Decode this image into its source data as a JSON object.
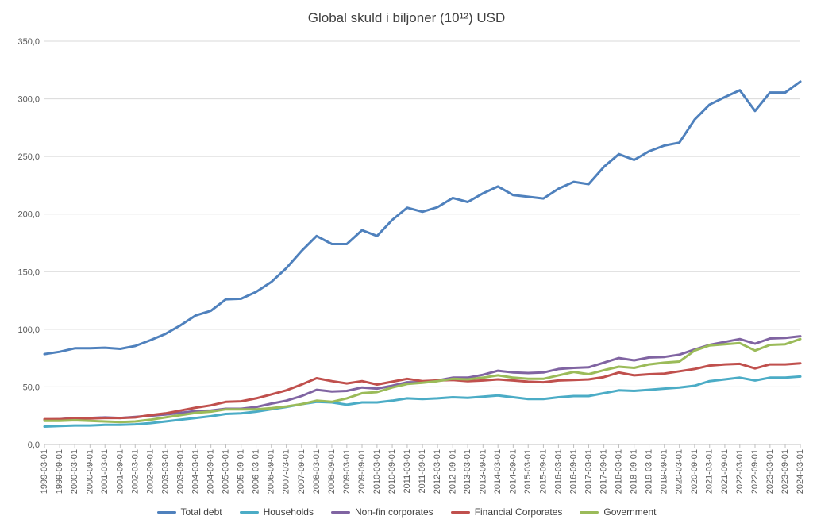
{
  "chart_data": {
    "type": "line",
    "title": "Global skuld i biljoner (10¹²) USD",
    "xlabel": "",
    "ylabel": "",
    "ylim": [
      0,
      350
    ],
    "yticks": [
      "0,0",
      "50,0",
      "100,0",
      "150,0",
      "200,0",
      "250,0",
      "300,0",
      "350,0"
    ],
    "grid": "horizontal",
    "legend_position": "bottom",
    "x_tick_labels": [
      "1999-03-01",
      "1999-09-01",
      "2000-03-01",
      "2000-09-01",
      "2001-03-01",
      "2001-09-01",
      "2002-03-01",
      "2002-09-01",
      "2003-03-01",
      "2003-09-01",
      "2004-03-01",
      "2004-09-01",
      "2005-03-01",
      "2005-09-01",
      "2006-03-01",
      "2006-09-01",
      "2007-03-01",
      "2007-09-01",
      "2008-03-01",
      "2008-09-01",
      "2009-03-01",
      "2009-09-01",
      "2010-03-01",
      "2010-09-01",
      "2011-03-01",
      "2011-09-01",
      "2012-03-01",
      "2012-09-01",
      "2013-03-01",
      "2013-09-01",
      "2014-03-01",
      "2014-09-01",
      "2015-03-01",
      "2015-09-01",
      "2016-03-01",
      "2016-09-01",
      "2017-03-01",
      "2017-09-01",
      "2018-03-01",
      "2018-09-01",
      "2019-03-01",
      "2019-09-01",
      "2020-03-01",
      "2020-09-01",
      "2021-03-01",
      "2021-09-01",
      "2022-03-01",
      "2022-09-01",
      "2023-03-01",
      "2023-09-01",
      "2024-03-01"
    ],
    "x_start": "1999-03-01",
    "x_end": "2024-03-01",
    "series": [
      {
        "name": "Total debt",
        "color": "#4f81bd",
        "values": [
          [
            "1999-03-01",
            78.5
          ],
          [
            "1999-09-01",
            80.5
          ],
          [
            "2000-03-01",
            83.5
          ],
          [
            "2000-09-01",
            83.5
          ],
          [
            "2001-03-01",
            84.0
          ],
          [
            "2001-09-01",
            83.0
          ],
          [
            "2002-03-01",
            85.5
          ],
          [
            "2002-09-01",
            90.5
          ],
          [
            "2003-03-01",
            96.0
          ],
          [
            "2003-09-01",
            103.5
          ],
          [
            "2004-03-01",
            112.0
          ],
          [
            "2004-09-01",
            116.0
          ],
          [
            "2005-03-01",
            126.0
          ],
          [
            "2005-09-01",
            126.5
          ],
          [
            "2006-03-01",
            132.5
          ],
          [
            "2006-09-01",
            141.0
          ],
          [
            "2007-03-01",
            153.0
          ],
          [
            "2007-09-01",
            168.0
          ],
          [
            "2008-03-01",
            181.0
          ],
          [
            "2008-09-01",
            174.0
          ],
          [
            "2009-03-01",
            174.0
          ],
          [
            "2009-09-01",
            186.0
          ],
          [
            "2010-03-01",
            181.0
          ],
          [
            "2010-09-01",
            195.0
          ],
          [
            "2011-03-01",
            205.5
          ],
          [
            "2011-09-01",
            202.0
          ],
          [
            "2012-03-01",
            206.0
          ],
          [
            "2012-09-01",
            214.0
          ],
          [
            "2013-03-01",
            210.5
          ],
          [
            "2013-09-01",
            218.0
          ],
          [
            "2014-03-01",
            224.0
          ],
          [
            "2014-09-01",
            216.5
          ],
          [
            "2015-03-01",
            215.0
          ],
          [
            "2015-09-01",
            213.5
          ],
          [
            "2016-03-01",
            222.0
          ],
          [
            "2016-09-01",
            228.0
          ],
          [
            "2017-03-01",
            226.0
          ],
          [
            "2017-09-01",
            241.0
          ],
          [
            "2018-03-01",
            252.0
          ],
          [
            "2018-09-01",
            247.0
          ],
          [
            "2019-03-01",
            254.5
          ],
          [
            "2019-09-01",
            259.5
          ],
          [
            "2020-03-01",
            262.0
          ],
          [
            "2020-09-01",
            282.0
          ],
          [
            "2021-03-01",
            295.0
          ],
          [
            "2021-09-01",
            301.5
          ],
          [
            "2022-03-01",
            307.5
          ],
          [
            "2022-09-01",
            289.5
          ],
          [
            "2023-03-01",
            305.5
          ],
          [
            "2023-09-01",
            305.5
          ],
          [
            "2024-03-01",
            315.0
          ]
        ]
      },
      {
        "name": "Households",
        "color": "#4bacc6",
        "values": [
          [
            "1999-03-01",
            15.5
          ],
          [
            "1999-09-01",
            16.0
          ],
          [
            "2000-03-01",
            16.5
          ],
          [
            "2000-09-01",
            16.5
          ],
          [
            "2001-03-01",
            17.0
          ],
          [
            "2001-09-01",
            17.0
          ],
          [
            "2002-03-01",
            17.5
          ],
          [
            "2002-09-01",
            18.5
          ],
          [
            "2003-03-01",
            20.0
          ],
          [
            "2003-09-01",
            21.5
          ],
          [
            "2004-03-01",
            23.0
          ],
          [
            "2004-09-01",
            24.5
          ],
          [
            "2005-03-01",
            26.5
          ],
          [
            "2005-09-01",
            27.0
          ],
          [
            "2006-03-01",
            28.5
          ],
          [
            "2006-09-01",
            30.5
          ],
          [
            "2007-03-01",
            32.5
          ],
          [
            "2007-09-01",
            35.0
          ],
          [
            "2008-03-01",
            37.0
          ],
          [
            "2008-09-01",
            36.5
          ],
          [
            "2009-03-01",
            34.5
          ],
          [
            "2009-09-01",
            36.5
          ],
          [
            "2010-03-01",
            36.5
          ],
          [
            "2010-09-01",
            38.0
          ],
          [
            "2011-03-01",
            40.0
          ],
          [
            "2011-09-01",
            39.5
          ],
          [
            "2012-03-01",
            40.0
          ],
          [
            "2012-09-01",
            41.0
          ],
          [
            "2013-03-01",
            40.5
          ],
          [
            "2013-09-01",
            41.5
          ],
          [
            "2014-03-01",
            42.5
          ],
          [
            "2014-09-01",
            41.0
          ],
          [
            "2015-03-01",
            39.5
          ],
          [
            "2015-09-01",
            39.5
          ],
          [
            "2016-03-01",
            41.0
          ],
          [
            "2016-09-01",
            42.0
          ],
          [
            "2017-03-01",
            42.0
          ],
          [
            "2017-09-01",
            44.5
          ],
          [
            "2018-03-01",
            47.0
          ],
          [
            "2018-09-01",
            46.5
          ],
          [
            "2019-03-01",
            47.5
          ],
          [
            "2019-09-01",
            48.5
          ],
          [
            "2020-03-01",
            49.5
          ],
          [
            "2020-09-01",
            51.0
          ],
          [
            "2021-03-01",
            55.0
          ],
          [
            "2021-09-01",
            56.5
          ],
          [
            "2022-03-01",
            58.0
          ],
          [
            "2022-09-01",
            55.5
          ],
          [
            "2023-03-01",
            58.0
          ],
          [
            "2023-09-01",
            58.0
          ],
          [
            "2024-03-01",
            59.0
          ]
        ]
      },
      {
        "name": "Non-fin corporates",
        "color": "#8064a2",
        "values": [
          [
            "1999-03-01",
            21.5
          ],
          [
            "1999-09-01",
            22.0
          ],
          [
            "2000-03-01",
            23.0
          ],
          [
            "2000-09-01",
            23.0
          ],
          [
            "2001-03-01",
            23.5
          ],
          [
            "2001-09-01",
            23.0
          ],
          [
            "2002-03-01",
            24.0
          ],
          [
            "2002-09-01",
            25.0
          ],
          [
            "2003-03-01",
            26.0
          ],
          [
            "2003-09-01",
            27.5
          ],
          [
            "2004-03-01",
            29.0
          ],
          [
            "2004-09-01",
            29.5
          ],
          [
            "2005-03-01",
            31.0
          ],
          [
            "2005-09-01",
            31.0
          ],
          [
            "2006-03-01",
            32.5
          ],
          [
            "2006-09-01",
            35.5
          ],
          [
            "2007-03-01",
            38.0
          ],
          [
            "2007-09-01",
            42.0
          ],
          [
            "2008-03-01",
            47.5
          ],
          [
            "2008-09-01",
            46.0
          ],
          [
            "2009-03-01",
            46.5
          ],
          [
            "2009-09-01",
            49.5
          ],
          [
            "2010-03-01",
            48.5
          ],
          [
            "2010-09-01",
            51.0
          ],
          [
            "2011-03-01",
            54.0
          ],
          [
            "2011-09-01",
            54.0
          ],
          [
            "2012-03-01",
            55.5
          ],
          [
            "2012-09-01",
            58.0
          ],
          [
            "2013-03-01",
            58.0
          ],
          [
            "2013-09-01",
            60.5
          ],
          [
            "2014-03-01",
            64.0
          ],
          [
            "2014-09-01",
            62.5
          ],
          [
            "2015-03-01",
            62.0
          ],
          [
            "2015-09-01",
            62.5
          ],
          [
            "2016-03-01",
            65.5
          ],
          [
            "2016-09-01",
            66.5
          ],
          [
            "2017-03-01",
            67.0
          ],
          [
            "2017-09-01",
            71.0
          ],
          [
            "2018-03-01",
            75.0
          ],
          [
            "2018-09-01",
            73.0
          ],
          [
            "2019-03-01",
            75.5
          ],
          [
            "2019-09-01",
            76.0
          ],
          [
            "2020-03-01",
            78.0
          ],
          [
            "2020-09-01",
            82.5
          ],
          [
            "2021-03-01",
            86.5
          ],
          [
            "2021-09-01",
            89.0
          ],
          [
            "2022-03-01",
            91.5
          ],
          [
            "2022-09-01",
            87.5
          ],
          [
            "2023-03-01",
            92.0
          ],
          [
            "2023-09-01",
            92.5
          ],
          [
            "2024-03-01",
            94.0
          ]
        ]
      },
      {
        "name": "Financial Corporates",
        "color": "#c0504d",
        "values": [
          [
            "1999-03-01",
            22.0
          ],
          [
            "1999-09-01",
            22.0
          ],
          [
            "2000-03-01",
            22.5
          ],
          [
            "2000-09-01",
            22.5
          ],
          [
            "2001-03-01",
            23.0
          ],
          [
            "2001-09-01",
            23.0
          ],
          [
            "2002-03-01",
            23.5
          ],
          [
            "2002-09-01",
            25.5
          ],
          [
            "2003-03-01",
            27.0
          ],
          [
            "2003-09-01",
            29.5
          ],
          [
            "2004-03-01",
            32.0
          ],
          [
            "2004-09-01",
            34.0
          ],
          [
            "2005-03-01",
            37.0
          ],
          [
            "2005-09-01",
            37.5
          ],
          [
            "2006-03-01",
            40.0
          ],
          [
            "2006-09-01",
            43.5
          ],
          [
            "2007-03-01",
            47.0
          ],
          [
            "2007-09-01",
            52.0
          ],
          [
            "2008-03-01",
            57.5
          ],
          [
            "2008-09-01",
            55.0
          ],
          [
            "2009-03-01",
            53.0
          ],
          [
            "2009-09-01",
            55.0
          ],
          [
            "2010-03-01",
            52.0
          ],
          [
            "2010-09-01",
            54.5
          ],
          [
            "2011-03-01",
            57.0
          ],
          [
            "2011-09-01",
            55.0
          ],
          [
            "2012-03-01",
            55.5
          ],
          [
            "2012-09-01",
            56.0
          ],
          [
            "2013-03-01",
            55.0
          ],
          [
            "2013-09-01",
            55.5
          ],
          [
            "2014-03-01",
            56.5
          ],
          [
            "2014-09-01",
            55.5
          ],
          [
            "2015-03-01",
            54.5
          ],
          [
            "2015-09-01",
            54.0
          ],
          [
            "2016-03-01",
            55.5
          ],
          [
            "2016-09-01",
            56.0
          ],
          [
            "2017-03-01",
            56.5
          ],
          [
            "2017-09-01",
            58.5
          ],
          [
            "2018-03-01",
            62.5
          ],
          [
            "2018-09-01",
            60.0
          ],
          [
            "2019-03-01",
            61.0
          ],
          [
            "2019-09-01",
            61.5
          ],
          [
            "2020-03-01",
            63.5
          ],
          [
            "2020-09-01",
            65.5
          ],
          [
            "2021-03-01",
            68.5
          ],
          [
            "2021-09-01",
            69.5
          ],
          [
            "2022-03-01",
            70.0
          ],
          [
            "2022-09-01",
            66.0
          ],
          [
            "2023-03-01",
            69.5
          ],
          [
            "2023-09-01",
            69.5
          ],
          [
            "2024-03-01",
            70.5
          ]
        ]
      },
      {
        "name": "Government",
        "color": "#9bbb59",
        "values": [
          [
            "1999-03-01",
            20.5
          ],
          [
            "1999-09-01",
            20.5
          ],
          [
            "2000-03-01",
            21.0
          ],
          [
            "2000-09-01",
            20.5
          ],
          [
            "2001-03-01",
            20.0
          ],
          [
            "2001-09-01",
            19.5
          ],
          [
            "2002-03-01",
            20.0
          ],
          [
            "2002-09-01",
            21.5
          ],
          [
            "2003-03-01",
            23.5
          ],
          [
            "2003-09-01",
            25.5
          ],
          [
            "2004-03-01",
            27.5
          ],
          [
            "2004-09-01",
            28.5
          ],
          [
            "2005-03-01",
            30.5
          ],
          [
            "2005-09-01",
            30.5
          ],
          [
            "2006-03-01",
            30.5
          ],
          [
            "2006-09-01",
            31.5
          ],
          [
            "2007-03-01",
            33.0
          ],
          [
            "2007-09-01",
            35.0
          ],
          [
            "2008-03-01",
            38.0
          ],
          [
            "2008-09-01",
            37.0
          ],
          [
            "2009-03-01",
            40.0
          ],
          [
            "2009-09-01",
            44.5
          ],
          [
            "2010-03-01",
            45.5
          ],
          [
            "2010-09-01",
            49.5
          ],
          [
            "2011-03-01",
            52.5
          ],
          [
            "2011-09-01",
            53.5
          ],
          [
            "2012-03-01",
            55.0
          ],
          [
            "2012-09-01",
            57.0
          ],
          [
            "2013-03-01",
            56.5
          ],
          [
            "2013-09-01",
            58.0
          ],
          [
            "2014-03-01",
            60.0
          ],
          [
            "2014-09-01",
            58.0
          ],
          [
            "2015-03-01",
            57.0
          ],
          [
            "2015-09-01",
            57.0
          ],
          [
            "2016-03-01",
            60.0
          ],
          [
            "2016-09-01",
            63.0
          ],
          [
            "2017-03-01",
            61.0
          ],
          [
            "2017-09-01",
            64.5
          ],
          [
            "2018-03-01",
            67.5
          ],
          [
            "2018-09-01",
            66.5
          ],
          [
            "2019-03-01",
            69.5
          ],
          [
            "2019-09-01",
            71.0
          ],
          [
            "2020-03-01",
            72.0
          ],
          [
            "2020-09-01",
            81.5
          ],
          [
            "2021-03-01",
            86.0
          ],
          [
            "2021-09-01",
            87.0
          ],
          [
            "2022-03-01",
            88.0
          ],
          [
            "2022-09-01",
            81.5
          ],
          [
            "2023-03-01",
            86.5
          ],
          [
            "2023-09-01",
            87.0
          ],
          [
            "2024-03-01",
            91.5
          ]
        ]
      }
    ]
  }
}
